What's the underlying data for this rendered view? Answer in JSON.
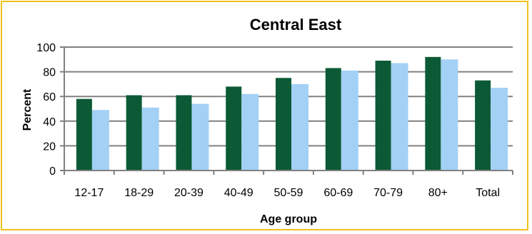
{
  "chart_data": {
    "type": "bar",
    "title": "Central East",
    "xlabel": "Age group",
    "ylabel": "Percent",
    "categories": [
      "12-17",
      "18-29",
      "20-39",
      "40-49",
      "50-59",
      "60-69",
      "70-79",
      "80+",
      "Total"
    ],
    "series": [
      {
        "values": [
          58,
          61,
          61,
          68,
          75,
          83,
          89,
          92,
          73
        ]
      },
      {
        "values": [
          49,
          51,
          54,
          62,
          70,
          81,
          87,
          90,
          67
        ]
      }
    ],
    "ylim": [
      0,
      100
    ],
    "yticks": [
      0,
      20,
      40,
      60,
      80,
      100
    ],
    "grid": true,
    "legend": "none",
    "colors": [
      "#0b5a35",
      "#a3d0f5"
    ]
  }
}
